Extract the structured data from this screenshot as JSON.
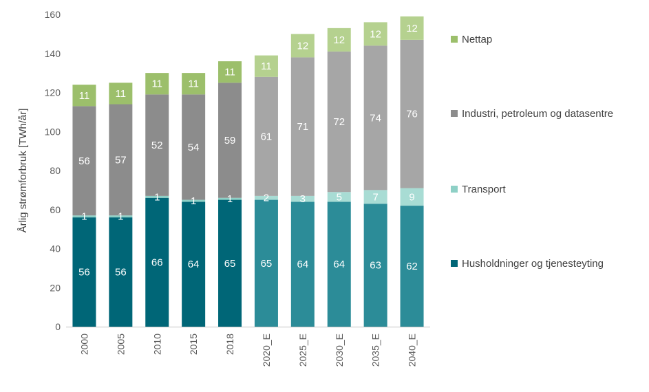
{
  "chart_data": {
    "type": "bar",
    "stacked": true,
    "ylabel": "Årlig strømforbruk [TWh/år]",
    "ylim": [
      0,
      160
    ],
    "yticks": [
      0,
      20,
      40,
      60,
      80,
      100,
      120,
      140,
      160
    ],
    "grid": false,
    "legend_position": "right",
    "categories": [
      "2000",
      "2005",
      "2010",
      "2015",
      "2018",
      "2020_E",
      "2025_E",
      "2030_E",
      "2035_E",
      "2040_E"
    ],
    "projected_from_index": 5,
    "series": [
      {
        "name": "Husholdninger og tjenesteyting",
        "values": [
          56,
          56,
          66,
          64,
          65,
          65,
          64,
          64,
          63,
          62
        ],
        "color": "#006677",
        "color_projected": "#2C8C98"
      },
      {
        "name": "Transport",
        "values": [
          1,
          1,
          1,
          1,
          1,
          2,
          3,
          5,
          7,
          9
        ],
        "color": "#8ED0C6",
        "color_projected": "#A8DCD4"
      },
      {
        "name": "Industri, petroleum og datasentre",
        "values": [
          56,
          57,
          52,
          54,
          59,
          61,
          71,
          72,
          74,
          76
        ],
        "color": "#8C8C8C",
        "color_projected": "#A6A6A6"
      },
      {
        "name": "Nettap",
        "values": [
          11,
          11,
          11,
          11,
          11,
          11,
          12,
          12,
          12,
          12
        ],
        "color": "#9CBF6B",
        "color_projected": "#B5D18F"
      }
    ],
    "legend_order": [
      3,
      2,
      1,
      0
    ]
  }
}
